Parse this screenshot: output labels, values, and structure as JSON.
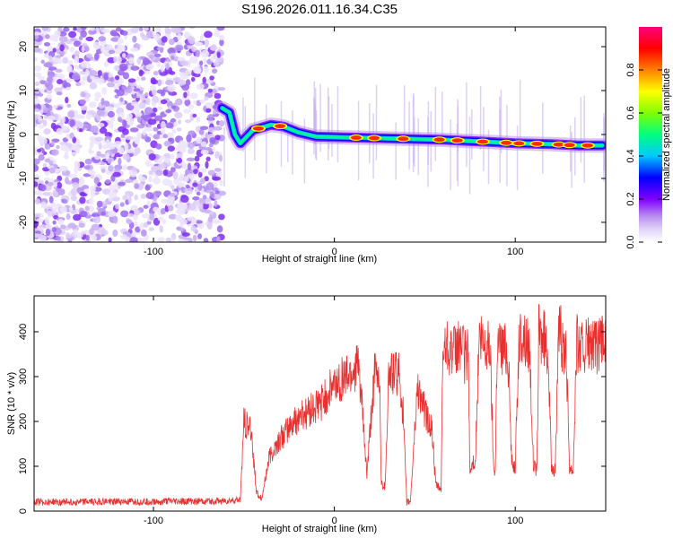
{
  "title": "S196.2026.011.16.34.C35",
  "chart_data": [
    {
      "type": "heatmap",
      "name": "spectrogram",
      "xlabel": "Height of straight line (km)",
      "ylabel": "Frequency (Hz)",
      "xlim": [
        -166,
        150
      ],
      "ylim": [
        -24.5,
        24.5
      ],
      "xticks": [
        -100,
        0,
        100
      ],
      "xtick_labels": [
        "-100",
        "0",
        "100"
      ],
      "yticks": [
        20,
        10,
        0,
        -10,
        -20
      ],
      "ytick_labels": [
        "20",
        "10",
        "0",
        "-10",
        "-20"
      ],
      "noise_region_x": [
        -166,
        -62
      ],
      "ridge_x": [
        -62,
        -58,
        -55,
        -52,
        -45,
        -35,
        -28,
        -20,
        -10,
        0,
        20,
        40,
        60,
        80,
        100,
        120,
        135,
        148
      ],
      "ridge_y": [
        6,
        5,
        0,
        -2,
        1,
        2.2,
        1.8,
        0.5,
        -0.5,
        -0.6,
        -0.8,
        -1,
        -1.2,
        -1.6,
        -2,
        -2.2,
        -2.5,
        -2.5
      ],
      "hot_spots_x": [
        -42,
        -30,
        12,
        22,
        38,
        58,
        68,
        82,
        95,
        102,
        112,
        124,
        130,
        140
      ],
      "colorbar": {
        "label": "Normalized spectral amplitude",
        "ticks": [
          0.0,
          0.2,
          0.4,
          0.6,
          0.8
        ],
        "tick_labels": [
          "0.0",
          "0.2",
          "0.4",
          "0.6",
          "0.8"
        ],
        "range": [
          0,
          1
        ],
        "colors": [
          "#ffffff",
          "#c0a8f0",
          "#7f00ff",
          "#0000ff",
          "#00c8ff",
          "#00ff80",
          "#80ff00",
          "#ffff00",
          "#ff8000",
          "#ff0000",
          "#ff0080"
        ]
      }
    },
    {
      "type": "line",
      "name": "snr",
      "xlabel": "Height of straight line (km)",
      "ylabel": "SNR (10 * v/v)",
      "xlim": [
        -166,
        150
      ],
      "ylim": [
        0,
        480
      ],
      "xticks": [
        -100,
        0,
        100
      ],
      "xtick_labels": [
        "-100",
        "0",
        "100"
      ],
      "yticks": [
        0,
        100,
        200,
        300,
        400
      ],
      "ytick_labels": [
        "0",
        "100",
        "200",
        "300",
        "400"
      ],
      "line_color": "#e8312e",
      "x": [
        -166,
        -60,
        -52,
        -50,
        -46,
        -43,
        -40,
        -36,
        -30,
        -20,
        -10,
        0,
        5,
        10,
        12,
        14,
        18,
        22,
        25,
        26,
        28,
        30,
        32,
        36,
        38,
        40,
        42,
        44,
        46,
        50,
        54,
        56,
        58,
        59,
        60,
        62,
        66,
        68,
        70,
        72,
        74,
        75,
        76,
        78,
        80,
        82,
        84,
        86,
        88,
        89,
        90,
        92,
        96,
        98,
        100,
        102,
        104,
        106,
        108,
        110,
        112,
        113,
        114,
        116,
        118,
        120,
        122,
        124,
        125,
        126,
        128,
        130,
        132,
        134,
        136,
        140,
        145,
        150
      ],
      "y": [
        20,
        22,
        25,
        200,
        180,
        40,
        30,
        120,
        160,
        210,
        230,
        280,
        300,
        310,
        330,
        300,
        80,
        300,
        300,
        60,
        55,
        300,
        310,
        300,
        220,
        20,
        20,
        150,
        280,
        220,
        180,
        60,
        50,
        50,
        360,
        380,
        350,
        360,
        380,
        340,
        360,
        80,
        100,
        120,
        380,
        370,
        360,
        380,
        100,
        90,
        380,
        370,
        360,
        110,
        100,
        370,
        390,
        380,
        370,
        100,
        90,
        400,
        390,
        380,
        370,
        100,
        90,
        380,
        400,
        360,
        380,
        100,
        90,
        380,
        360,
        370,
        360,
        380
      ]
    }
  ]
}
